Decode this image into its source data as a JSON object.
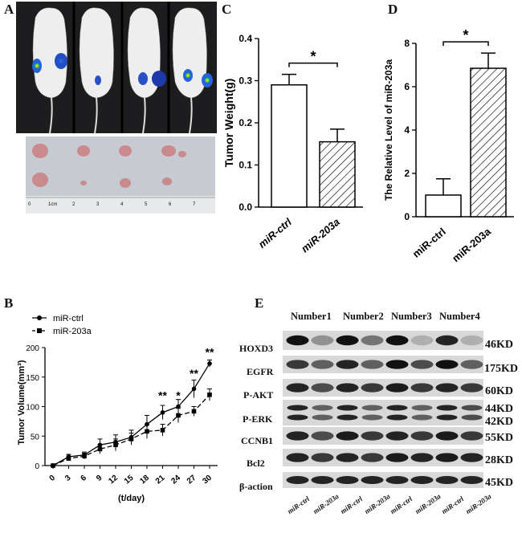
{
  "panels": {
    "A": "A",
    "B": "B",
    "C": "C",
    "D": "D",
    "E": "E"
  },
  "panel_a": {
    "ruler_labels": [
      "0",
      "1cm",
      "2",
      "3",
      "4",
      "5",
      "6",
      "7"
    ]
  },
  "panel_b": {
    "legend": [
      "miR-ctrl",
      "miR-203a"
    ],
    "significance": [
      "**",
      "*",
      "**",
      "**"
    ]
  },
  "panel_e": {
    "groups": [
      "Number1",
      "Number2",
      "Number3",
      "Number4"
    ],
    "rows": [
      {
        "name": "HOXD3",
        "kd": "46KD"
      },
      {
        "name": "EGFR",
        "kd": "175KD"
      },
      {
        "name": "P-AKT",
        "kd": "60KD"
      },
      {
        "name": "P-ERK",
        "kd": "44KD",
        "kd2": "42KD"
      },
      {
        "name": "CCNB1",
        "kd": "55KD"
      },
      {
        "name": "Bcl2",
        "kd": "28KD"
      },
      {
        "name": "β-action",
        "kd": "45KD"
      }
    ],
    "lanes": [
      "miR-ctrl",
      "miR-203a",
      "miR-ctrl",
      "miR-203a",
      "miR-ctrl",
      "miR-203a",
      "miR-ctrl",
      "miR-203a"
    ]
  },
  "chart_data": [
    {
      "type": "bar",
      "panel": "C",
      "categories": [
        "miR-ctrl",
        "miR-203a"
      ],
      "values": [
        0.29,
        0.155
      ],
      "errors": [
        0.025,
        0.03
      ],
      "ylabel": "Tumor Weight(g)",
      "ylim": [
        0,
        0.4
      ],
      "yticks": [
        "0.0",
        "0.1",
        "0.2",
        "0.3",
        "0.4"
      ],
      "significance": "*"
    },
    {
      "type": "bar",
      "panel": "D",
      "categories": [
        "miR-ctrl",
        "miR-203a"
      ],
      "values": [
        1.0,
        6.85
      ],
      "errors": [
        0.75,
        0.7
      ],
      "ylabel": "The Relative Level of miR-203a",
      "ylim": [
        0,
        8
      ],
      "yticks": [
        "0",
        "2",
        "4",
        "6",
        "8"
      ],
      "significance": "*"
    },
    {
      "type": "line",
      "panel": "B",
      "x": [
        0,
        3,
        6,
        9,
        12,
        15,
        18,
        21,
        24,
        27,
        30
      ],
      "xticks": [
        "0",
        "3",
        "6",
        "9",
        "12",
        "15",
        "18",
        "21",
        "24",
        "27",
        "30"
      ],
      "xlabel": "(t/day)",
      "ylabel": "Tumor Volume(mm³)",
      "ylim": [
        0,
        200
      ],
      "yticks": [
        "0",
        "50",
        "100",
        "150",
        "200"
      ],
      "series": [
        {
          "name": "miR-ctrl",
          "values": [
            0,
            15,
            18,
            35,
            40,
            48,
            70,
            90,
            100,
            130,
            173
          ],
          "errors": [
            0,
            4,
            5,
            10,
            12,
            12,
            15,
            12,
            12,
            15,
            6
          ]
        },
        {
          "name": "miR-203a",
          "values": [
            0,
            12,
            16,
            28,
            35,
            45,
            58,
            60,
            85,
            92,
            120
          ],
          "errors": [
            0,
            4,
            5,
            8,
            10,
            10,
            12,
            10,
            12,
            8,
            10
          ]
        }
      ]
    }
  ]
}
